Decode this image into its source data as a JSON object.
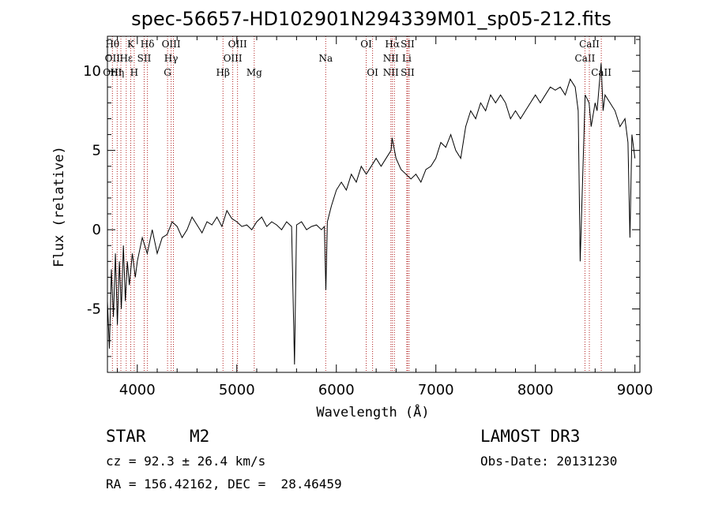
{
  "chart_data": {
    "type": "line",
    "title": "spec-56657-HD102901N294339M01_sp05-212.fits",
    "xlabel": "Wavelength (Å)",
    "ylabel": "Flux (relative)",
    "xlim": [
      3700,
      9050
    ],
    "ylim": [
      -9,
      12.2
    ],
    "xticks": [
      4000,
      5000,
      6000,
      7000,
      8000,
      9000
    ],
    "yticks": [
      -5,
      0,
      5,
      10
    ],
    "xtick_labels": [
      "4000",
      "5000",
      "6000",
      "7000",
      "8000",
      "9000"
    ],
    "ytick_labels": [
      "-5",
      "0",
      "5",
      "10"
    ],
    "line_color": "#000000",
    "marker_color": "#b22222",
    "series": [
      {
        "x": [
          3700,
          3720,
          3740,
          3760,
          3780,
          3800,
          3820,
          3840,
          3860,
          3880,
          3900,
          3920,
          3950,
          3980,
          4000,
          4050,
          4100,
          4150,
          4200,
          4250,
          4300,
          4350,
          4400,
          4450,
          4500,
          4550,
          4600,
          4650,
          4700,
          4750,
          4800,
          4850,
          4900,
          4950,
          5000,
          5050,
          5100,
          5150,
          5200,
          5250,
          5300,
          5350,
          5400,
          5450,
          5500,
          5550,
          5580,
          5600,
          5650,
          5700,
          5750,
          5800,
          5850,
          5880,
          5895,
          5910,
          5950,
          6000,
          6050,
          6100,
          6150,
          6200,
          6250,
          6300,
          6350,
          6400,
          6450,
          6500,
          6550,
          6560,
          6600,
          6650,
          6700,
          6750,
          6800,
          6850,
          6900,
          6950,
          7000,
          7050,
          7100,
          7150,
          7200,
          7250,
          7300,
          7350,
          7400,
          7450,
          7500,
          7550,
          7600,
          7650,
          7700,
          7750,
          7800,
          7850,
          7900,
          7950,
          8000,
          8050,
          8100,
          8150,
          8200,
          8250,
          8300,
          8350,
          8400,
          8430,
          8450,
          8500,
          8540,
          8560,
          8600,
          8620,
          8640,
          8660,
          8680,
          8700,
          8750,
          8800,
          8850,
          8900,
          8930,
          8950,
          8970,
          9000
        ],
        "y": [
          -4.5,
          -7.5,
          -2.5,
          -5.5,
          -1.5,
          -6.0,
          -2.0,
          -5.0,
          -1.0,
          -4.5,
          -2.0,
          -3.5,
          -1.5,
          -3.0,
          -2.0,
          -0.5,
          -1.5,
          0.0,
          -1.5,
          -0.5,
          -0.3,
          0.5,
          0.2,
          -0.5,
          0.0,
          0.8,
          0.3,
          -0.2,
          0.5,
          0.3,
          0.8,
          0.2,
          1.2,
          0.7,
          0.5,
          0.2,
          0.3,
          0.0,
          0.5,
          0.8,
          0.2,
          0.5,
          0.3,
          0.0,
          0.5,
          0.2,
          -8.5,
          0.3,
          0.5,
          0.0,
          0.2,
          0.3,
          0.0,
          0.2,
          -3.8,
          0.5,
          1.5,
          2.5,
          3.0,
          2.5,
          3.5,
          3.0,
          4.0,
          3.5,
          4.0,
          4.5,
          4.0,
          4.5,
          5.0,
          5.8,
          4.5,
          3.8,
          3.5,
          3.2,
          3.5,
          3.0,
          3.8,
          4.0,
          4.5,
          5.5,
          5.2,
          6.0,
          5.0,
          4.5,
          6.5,
          7.5,
          7.0,
          8.0,
          7.5,
          8.5,
          8.0,
          8.5,
          8.0,
          7.0,
          7.5,
          7.0,
          7.5,
          8.0,
          8.5,
          8.0,
          8.5,
          9.0,
          8.8,
          9.0,
          8.5,
          9.5,
          9.0,
          7.5,
          -2.0,
          8.5,
          8.0,
          6.5,
          8.0,
          7.5,
          9.0,
          10.5,
          7.5,
          8.5,
          8.0,
          7.5,
          6.5,
          7.0,
          5.5,
          -0.5,
          6.0,
          4.5
        ]
      }
    ],
    "line_markers": [
      {
        "w": 3750,
        "labels": [
          "Hθ",
          "OII",
          "OIII"
        ]
      },
      {
        "w": 3798,
        "labels": [
          "",
          "",
          "Hη"
        ]
      },
      {
        "w": 3835,
        "labels": [
          "",
          "",
          ""
        ]
      },
      {
        "w": 3889,
        "labels": [
          "",
          "Hε",
          ""
        ]
      },
      {
        "w": 3934,
        "labels": [
          "K",
          "",
          ""
        ]
      },
      {
        "w": 3969,
        "labels": [
          "",
          "",
          "H"
        ]
      },
      {
        "w": 4069,
        "labels": [
          "",
          "SII",
          ""
        ]
      },
      {
        "w": 4102,
        "labels": [
          "Hδ",
          "",
          ""
        ]
      },
      {
        "w": 4304,
        "labels": [
          "",
          "",
          "G"
        ]
      },
      {
        "w": 4340,
        "labels": [
          "OIII",
          "Hγ",
          ""
        ]
      },
      {
        "w": 4363,
        "labels": [
          "",
          "",
          ""
        ]
      },
      {
        "w": 4861,
        "labels": [
          "",
          "",
          "Hβ"
        ]
      },
      {
        "w": 4959,
        "labels": [
          "",
          "OIII",
          ""
        ]
      },
      {
        "w": 5007,
        "labels": [
          "OIII",
          "",
          ""
        ]
      },
      {
        "w": 5175,
        "labels": [
          "",
          "",
          "Mg"
        ]
      },
      {
        "w": 5893,
        "labels": [
          "",
          "Na",
          ""
        ]
      },
      {
        "w": 6300,
        "labels": [
          "OI",
          "",
          ""
        ]
      },
      {
        "w": 6364,
        "labels": [
          "",
          "",
          "OI"
        ]
      },
      {
        "w": 6548,
        "labels": [
          "",
          "NII",
          "NII"
        ]
      },
      {
        "w": 6563,
        "labels": [
          "Hα",
          "",
          ""
        ]
      },
      {
        "w": 6583,
        "labels": [
          "",
          "",
          ""
        ]
      },
      {
        "w": 6708,
        "labels": [
          "",
          "Li",
          ""
        ]
      },
      {
        "w": 6716,
        "labels": [
          "SII",
          "",
          "SII"
        ]
      },
      {
        "w": 6731,
        "labels": [
          "",
          "",
          ""
        ]
      },
      {
        "w": 8498,
        "labels": [
          "",
          "CaII",
          ""
        ]
      },
      {
        "w": 8542,
        "labels": [
          "CaII",
          "",
          ""
        ]
      },
      {
        "w": 8662,
        "labels": [
          "",
          "",
          "CaII"
        ]
      }
    ]
  },
  "info": {
    "object_class": "STAR",
    "subclass": "M2",
    "survey": "LAMOST DR3",
    "cz": "cz = 92.3 ± 26.4 km/s",
    "obs_date": "Obs-Date: 20131230",
    "coords": "RA = 156.42162, DEC =  28.46459"
  }
}
